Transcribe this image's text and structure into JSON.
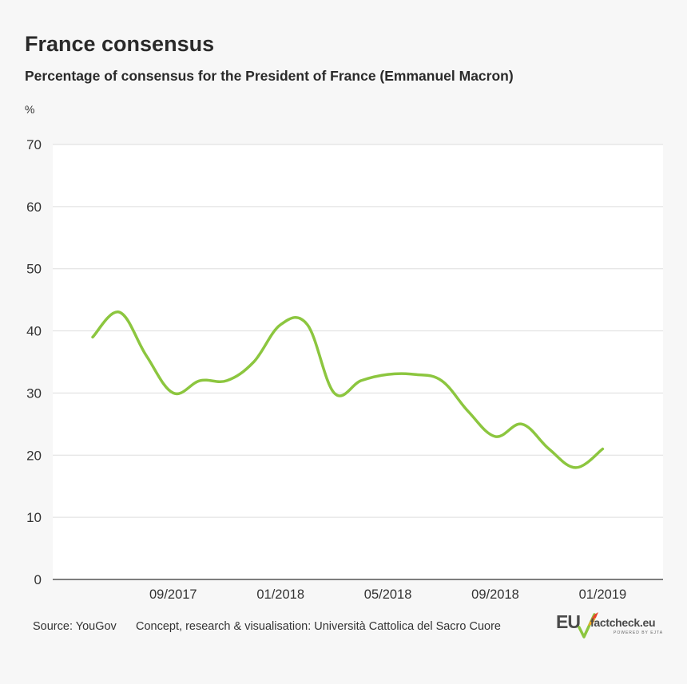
{
  "header": {
    "title": "France consensus",
    "subtitle": "Percentage of consensus for the President of France (Emmanuel Macron)",
    "unit": "%"
  },
  "footer": {
    "source": "Source: YouGov",
    "credit": "Concept, research & visualisation: Università Cattolica del Sacro Cuore"
  },
  "logo": {
    "eu": "EU",
    "factcheck": "factcheck.eu",
    "powered": "POWERED BY EJTA"
  },
  "chart_data": {
    "type": "line",
    "x": [
      "2017-06",
      "2017-07",
      "2017-08",
      "2017-09",
      "2017-10",
      "2017-11",
      "2017-12",
      "2018-01",
      "2018-02",
      "2018-03",
      "2018-04",
      "2018-05",
      "2018-06",
      "2018-07",
      "2018-08",
      "2018-09",
      "2018-10",
      "2018-11",
      "2018-12",
      "2019-01"
    ],
    "series": [
      {
        "values": [
          39,
          43,
          36,
          30,
          32,
          32,
          35,
          41,
          41,
          30,
          32,
          33,
          33,
          32,
          27,
          23,
          25,
          21,
          18,
          21
        ]
      }
    ],
    "x_tick_labels": [
      {
        "x": "2017-09",
        "label": "09/2017"
      },
      {
        "x": "2018-01",
        "label": "01/2018"
      },
      {
        "x": "2018-05",
        "label": "05/2018"
      },
      {
        "x": "2018-09",
        "label": "09/2018"
      },
      {
        "x": "2019-01",
        "label": "01/2019"
      }
    ],
    "y_ticks": [
      0,
      10,
      20,
      30,
      40,
      50,
      60,
      70
    ],
    "ylim": [
      0,
      70
    ],
    "grid": true,
    "line_color": "#8cc63f",
    "gridline_color": "#dddddd",
    "plot_background": "#ffffff"
  }
}
